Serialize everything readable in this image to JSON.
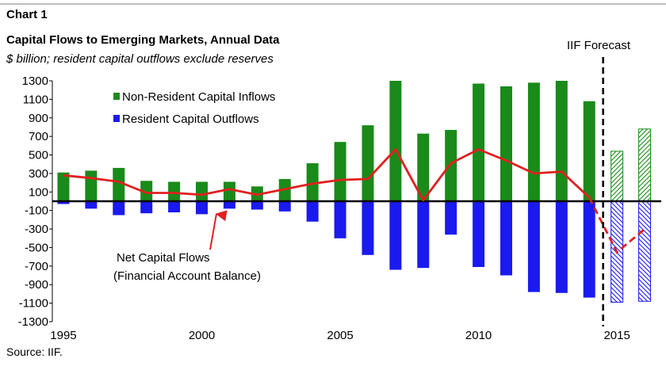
{
  "header": {
    "chart_label": "Chart 1",
    "title": "Capital Flows to Emerging Markets, Annual Data",
    "subtitle": "$ billion; resident capital outflows exclude reserves"
  },
  "footer": {
    "source": "Source: IIF."
  },
  "colors": {
    "inflows": "#1a8a1a",
    "outflows": "#1a1aee",
    "net": "#e02020",
    "forecast_line": "#000000"
  },
  "chart_data": {
    "type": "bar",
    "x": [
      1995,
      1996,
      1997,
      1998,
      1999,
      2000,
      2001,
      2002,
      2003,
      2004,
      2005,
      2006,
      2007,
      2008,
      2009,
      2010,
      2011,
      2012,
      2013,
      2014,
      2015,
      2016
    ],
    "series": [
      {
        "name": "Non-Resident Capital Inflows",
        "type": "bar",
        "values": [
          310,
          330,
          360,
          220,
          210,
          210,
          210,
          160,
          240,
          410,
          640,
          820,
          1300,
          730,
          770,
          1270,
          1240,
          1280,
          1300,
          1080,
          540,
          780
        ]
      },
      {
        "name": "Resident Capital Outflows",
        "type": "bar",
        "values": [
          -30,
          -80,
          -150,
          -130,
          -120,
          -140,
          -80,
          -90,
          -110,
          -220,
          -400,
          -580,
          -740,
          -720,
          -360,
          -710,
          -800,
          -980,
          -990,
          -1040,
          -1090,
          -1080
        ]
      },
      {
        "name": "Net Capital Flows (Financial Account Balance)",
        "type": "line",
        "values": [
          280,
          250,
          210,
          90,
          90,
          70,
          130,
          70,
          130,
          190,
          230,
          240,
          560,
          10,
          410,
          560,
          440,
          300,
          320,
          40,
          -550,
          -300
        ]
      }
    ],
    "forecast_start_index": 20,
    "forecast_label": "IIF Forecast",
    "annotation": {
      "text_line1": "Net Capital Flows",
      "text_line2": "(Financial Account Balance)",
      "x": 2001,
      "y": 70
    },
    "xticks": [
      1995,
      2000,
      2005,
      2010,
      2015
    ],
    "yticks": [
      1300,
      1100,
      900,
      700,
      500,
      300,
      100,
      -100,
      -300,
      -500,
      -700,
      -900,
      -1100,
      -1300
    ],
    "ylim": [
      -1300,
      1300
    ],
    "xlim": [
      1994.6,
      2016.6
    ],
    "legend_position": "top-left",
    "grid": false
  }
}
